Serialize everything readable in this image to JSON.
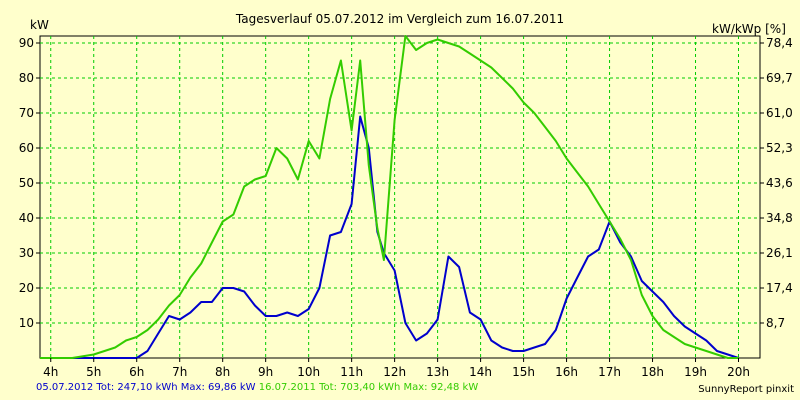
{
  "chart_data": {
    "type": "line",
    "title": "Tagesverlauf 05.07.2012 im Vergleich zum 16.07.2011",
    "ylabel_left": "kW",
    "ylabel_right": "kW/kWp [%]",
    "x_ticks": [
      "4h",
      "5h",
      "6h",
      "7h",
      "8h",
      "9h",
      "10h",
      "11h",
      "12h",
      "13h",
      "14h",
      "15h",
      "16h",
      "17h",
      "18h",
      "19h",
      "20h"
    ],
    "y_ticks_left": [
      "10",
      "20",
      "30",
      "40",
      "50",
      "60",
      "70",
      "80",
      "90"
    ],
    "y_ticks_right": [
      "8,7",
      "17,4",
      "26,1",
      "34,8",
      "43,6",
      "52,3",
      "61,0",
      "69,7",
      "78,4"
    ],
    "xlim": [
      3.75,
      20.5
    ],
    "ylim": [
      0,
      92
    ],
    "grid": true,
    "series": [
      {
        "name": "05.07.2012",
        "color": "#0000cc",
        "x": [
          3.75,
          6.0,
          6.25,
          6.5,
          6.75,
          7.0,
          7.25,
          7.5,
          7.75,
          8.0,
          8.25,
          8.5,
          8.75,
          9.0,
          9.25,
          9.5,
          9.75,
          10.0,
          10.25,
          10.5,
          10.75,
          11.0,
          11.2,
          11.4,
          11.6,
          11.75,
          12.0,
          12.25,
          12.5,
          12.75,
          13.0,
          13.25,
          13.5,
          13.75,
          14.0,
          14.25,
          14.5,
          14.75,
          15.0,
          15.25,
          15.5,
          15.75,
          16.0,
          16.25,
          16.5,
          16.75,
          17.0,
          17.25,
          17.5,
          17.75,
          18.0,
          18.25,
          18.5,
          18.75,
          19.0,
          19.25,
          19.5,
          19.75,
          20.0
        ],
        "y": [
          0,
          0,
          2,
          7,
          12,
          11,
          13,
          16,
          16,
          20,
          20,
          19,
          15,
          12,
          12,
          13,
          12,
          14,
          20,
          35,
          36,
          44,
          69,
          60,
          36,
          30,
          25,
          10,
          5,
          7,
          11,
          29,
          26,
          13,
          11,
          5,
          3,
          2,
          2,
          3,
          4,
          8,
          17,
          23,
          29,
          31,
          39,
          33,
          29,
          22,
          19,
          16,
          12,
          9,
          7,
          5,
          2,
          1,
          0
        ]
      },
      {
        "name": "16.07.2011",
        "color": "#33cc00",
        "x": [
          3.75,
          4.5,
          5.0,
          5.25,
          5.5,
          5.75,
          6.0,
          6.25,
          6.5,
          6.75,
          7.0,
          7.25,
          7.5,
          7.75,
          8.0,
          8.25,
          8.5,
          8.75,
          9.0,
          9.25,
          9.5,
          9.75,
          10.0,
          10.25,
          10.5,
          10.75,
          11.0,
          11.2,
          11.4,
          11.6,
          11.75,
          12.0,
          12.25,
          12.5,
          12.75,
          13.0,
          13.25,
          13.5,
          13.75,
          14.0,
          14.25,
          14.5,
          14.75,
          15.0,
          15.25,
          15.5,
          15.75,
          16.0,
          16.25,
          16.5,
          16.75,
          17.0,
          17.25,
          17.5,
          17.75,
          18.0,
          18.25,
          18.5,
          18.75,
          19.0,
          19.25,
          19.5,
          19.75,
          20.0
        ],
        "y": [
          0,
          0,
          1,
          2,
          3,
          5,
          6,
          8,
          11,
          15,
          18,
          23,
          27,
          33,
          39,
          41,
          49,
          51,
          52,
          60,
          57,
          51,
          62,
          57,
          74,
          85,
          65,
          85,
          55,
          37,
          28,
          68,
          92,
          88,
          90,
          91,
          90,
          89,
          87,
          85,
          83,
          80,
          77,
          73,
          70,
          66,
          62,
          57,
          53,
          49,
          44,
          39,
          34,
          28,
          18,
          12,
          8,
          6,
          4,
          3,
          2,
          1,
          0,
          0
        ]
      }
    ]
  },
  "footer": {
    "series1_label": "05.07.2012 Tot: 247,10 kWh Max: 69,86 kW",
    "series2_label": "16.07.2011 Tot: 703,40 kWh Max: 92,48 kW",
    "credit": "SunnyReport pinxit"
  }
}
